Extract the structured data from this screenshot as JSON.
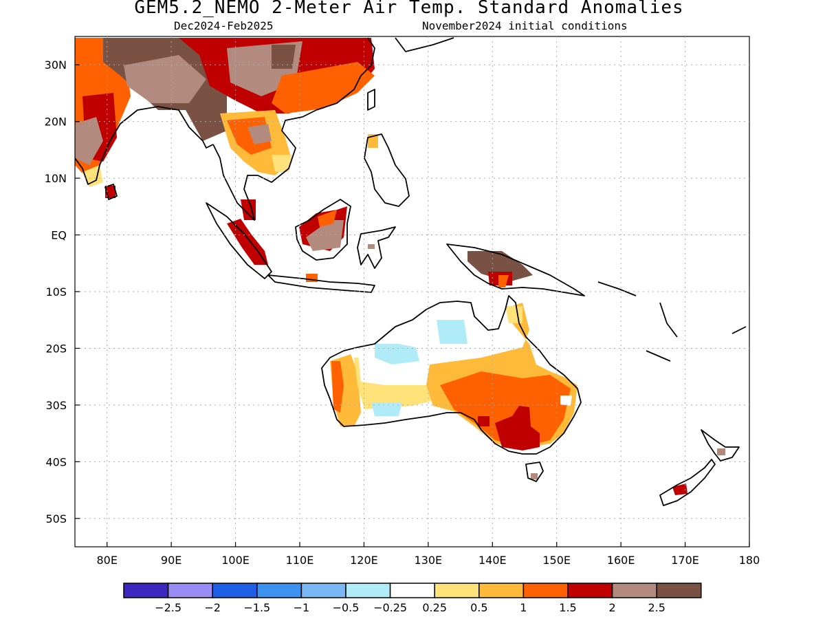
{
  "title": "GEM5.2_NEMO 2-Meter Air Temp. Standard Anomalies",
  "subtitle_left": "Dec2024-Feb2025",
  "subtitle_right": "November2024 initial conditions",
  "map": {
    "lon_range": [
      75,
      180
    ],
    "lat_range": [
      -55,
      35
    ],
    "lon_ticks": [
      {
        "value": 80,
        "label": "80E"
      },
      {
        "value": 90,
        "label": "90E"
      },
      {
        "value": 100,
        "label": "100E"
      },
      {
        "value": 110,
        "label": "110E"
      },
      {
        "value": 120,
        "label": "120E"
      },
      {
        "value": 130,
        "label": "130E"
      },
      {
        "value": 140,
        "label": "140E"
      },
      {
        "value": 150,
        "label": "150E"
      },
      {
        "value": 160,
        "label": "160E"
      },
      {
        "value": 170,
        "label": "170E"
      },
      {
        "value": 180,
        "label": "180"
      }
    ],
    "lat_ticks": [
      {
        "value": 30,
        "label": "30N"
      },
      {
        "value": 20,
        "label": "20N"
      },
      {
        "value": 10,
        "label": "10N"
      },
      {
        "value": 0,
        "label": "EQ"
      },
      {
        "value": -10,
        "label": "10S"
      },
      {
        "value": -20,
        "label": "20S"
      },
      {
        "value": -30,
        "label": "30S"
      },
      {
        "value": -40,
        "label": "40S"
      },
      {
        "value": -50,
        "label": "50S"
      }
    ],
    "grid": "dotted"
  },
  "colorbar": {
    "colors": [
      "#3c28c0",
      "#9b8cf5",
      "#1f5fe6",
      "#3c92f0",
      "#7ab8f5",
      "#b0ecf8",
      "#ffffff",
      "#ffe27a",
      "#ffba3a",
      "#ff6000",
      "#c00000",
      "#b38a7e",
      "#7a5244"
    ],
    "labels": [
      "-2.5",
      "-2",
      "-1.5",
      "-1",
      "-0.5",
      "-0.25",
      "0.25",
      "0.5",
      "1",
      "1.5",
      "2",
      "2.5"
    ]
  },
  "chart_data": {
    "type": "heatmap",
    "title": "GEM5.2_NEMO 2-Meter Air Temp. Standard Anomalies",
    "subtitle": [
      "Dec2024-Feb2025",
      "November2024 initial conditions"
    ],
    "x_range_lon": [
      75,
      180
    ],
    "y_range_lat": [
      -55,
      35
    ],
    "levels": [
      -2.5,
      -2,
      -1.5,
      -1,
      -0.5,
      -0.25,
      0.25,
      0.5,
      1,
      1.5,
      2,
      2.5
    ],
    "regions": [
      {
        "lon": [
          75,
          80
        ],
        "lat": [
          12,
          35
        ],
        "value": 1.5
      },
      {
        "lon": [
          80,
          95
        ],
        "lat": [
          24,
          35
        ],
        "value": 2.5
      },
      {
        "lon": [
          95,
          125
        ],
        "lat": [
          24,
          35
        ],
        "value": 2
      },
      {
        "lon": [
          108,
          122
        ],
        "lat": [
          22,
          30
        ],
        "value": 1.5
      },
      {
        "lon": [
          93,
          105
        ],
        "lat": [
          14,
          28
        ],
        "value": 2.5
      },
      {
        "lon": [
          98,
          110
        ],
        "lat": [
          10,
          22
        ],
        "value": 1
      },
      {
        "lon": [
          83,
          85
        ],
        "lat": [
          6,
          9
        ],
        "value": 2
      },
      {
        "lon": [
          100,
          106
        ],
        "lat": [
          -4,
          6
        ],
        "value": 2
      },
      {
        "lon": [
          111,
          118
        ],
        "lat": [
          -2,
          4
        ],
        "value": 2.5
      },
      {
        "lon": [
          138,
          149
        ],
        "lat": [
          -9,
          -3
        ],
        "value": 2.5
      },
      {
        "lon": [
          114,
          124
        ],
        "lat": [
          -34,
          -22
        ],
        "value": 1
      },
      {
        "lon": [
          125,
          137
        ],
        "lat": [
          -31,
          -17
        ],
        "value": -0.25
      },
      {
        "lon": [
          134,
          152
        ],
        "lat": [
          -32,
          -24
        ],
        "value": 1
      },
      {
        "lon": [
          136,
          150
        ],
        "lat": [
          -38,
          -28
        ],
        "value": 1.5
      },
      {
        "lon": [
          141,
          149
        ],
        "lat": [
          -38,
          -34
        ],
        "value": 2
      },
      {
        "lon": [
          145,
          152
        ],
        "lat": [
          -22,
          -14
        ],
        "value": 0.5
      },
      {
        "lon": [
          168,
          172
        ],
        "lat": [
          -46,
          -44
        ],
        "value": 2
      }
    ]
  }
}
